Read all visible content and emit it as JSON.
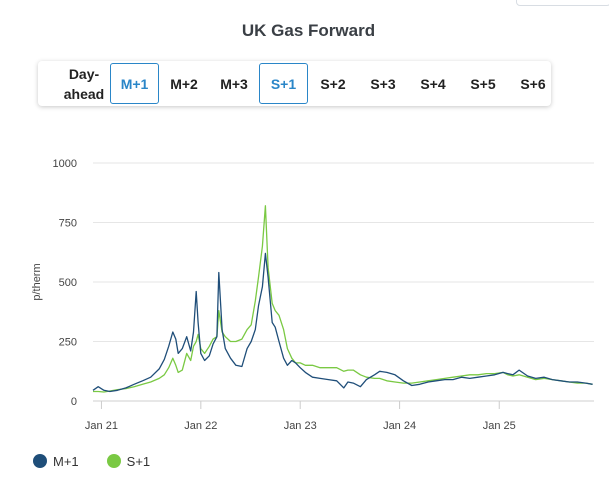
{
  "title": "UK Gas Forward",
  "selector": {
    "buttons": [
      {
        "label": "Day-ahead",
        "line1": "Day-",
        "line2": "ahead",
        "active": false
      },
      {
        "label": "M+1",
        "active": true
      },
      {
        "label": "M+2",
        "active": false
      },
      {
        "label": "M+3",
        "active": false
      },
      {
        "label": "S+1",
        "active": true
      },
      {
        "label": "S+2",
        "active": false
      },
      {
        "label": "S+3",
        "active": false
      },
      {
        "label": "S+4",
        "active": false
      },
      {
        "label": "S+5",
        "active": false
      },
      {
        "label": "S+6",
        "active": false
      }
    ]
  },
  "colors": {
    "m1": "#1f4e79",
    "s1": "#7ac943",
    "active": "#2a86c8",
    "grid": "#e6e6e6"
  },
  "chart_data": {
    "type": "line",
    "title": "UK Gas Forward",
    "ylabel": "p/therm",
    "xlabel": "",
    "ylim": [
      0,
      1000
    ],
    "yticks": [
      0,
      250,
      500,
      750,
      1000
    ],
    "xticks": [
      {
        "label": "Jan 21",
        "x": "2021-01-01"
      },
      {
        "label": "Jan 22",
        "x": "2022-01-01"
      },
      {
        "label": "Jan 23",
        "x": "2023-01-01"
      },
      {
        "label": "Jan 24",
        "x": "2024-01-01"
      },
      {
        "label": "Jan 25",
        "x": "2025-01-01"
      }
    ],
    "xlim": [
      "2020-12-01",
      "2025-12-15"
    ],
    "grid": true,
    "legend": "bottom-left",
    "series": [
      {
        "name": "M+1",
        "x": [
          "2020-12-01",
          "2020-12-20",
          "2021-01-10",
          "2021-02-01",
          "2021-03-01",
          "2021-04-01",
          "2021-05-01",
          "2021-06-01",
          "2021-07-01",
          "2021-08-01",
          "2021-08-20",
          "2021-09-05",
          "2021-09-20",
          "2021-10-01",
          "2021-10-10",
          "2021-10-25",
          "2021-11-10",
          "2021-11-25",
          "2021-12-05",
          "2021-12-15",
          "2021-12-22",
          "2022-01-01",
          "2022-01-15",
          "2022-02-01",
          "2022-02-15",
          "2022-03-01",
          "2022-03-08",
          "2022-03-20",
          "2022-04-01",
          "2022-04-20",
          "2022-05-10",
          "2022-06-01",
          "2022-06-20",
          "2022-07-05",
          "2022-07-20",
          "2022-08-01",
          "2022-08-15",
          "2022-08-26",
          "2022-09-05",
          "2022-09-20",
          "2022-10-01",
          "2022-10-15",
          "2022-11-01",
          "2022-11-15",
          "2022-12-01",
          "2022-12-15",
          "2023-01-01",
          "2023-01-20",
          "2023-02-15",
          "2023-03-15",
          "2023-04-15",
          "2023-05-15",
          "2023-06-10",
          "2023-06-25",
          "2023-07-15",
          "2023-08-10",
          "2023-09-01",
          "2023-10-01",
          "2023-10-20",
          "2023-11-15",
          "2023-12-15",
          "2024-01-15",
          "2024-02-15",
          "2024-03-15",
          "2024-04-15",
          "2024-05-15",
          "2024-06-15",
          "2024-07-15",
          "2024-08-15",
          "2024-09-15",
          "2024-10-15",
          "2024-11-15",
          "2024-12-15",
          "2025-01-15",
          "2025-02-01",
          "2025-02-20",
          "2025-03-15",
          "2025-04-15",
          "2025-05-15",
          "2025-06-15",
          "2025-07-15",
          "2025-08-15",
          "2025-09-15",
          "2025-10-15",
          "2025-11-15",
          "2025-12-10"
        ],
        "values": [
          45,
          60,
          45,
          40,
          45,
          55,
          70,
          85,
          100,
          135,
          175,
          230,
          290,
          260,
          200,
          220,
          270,
          210,
          290,
          460,
          330,
          200,
          170,
          190,
          240,
          270,
          540,
          300,
          220,
          180,
          150,
          145,
          220,
          250,
          300,
          400,
          480,
          620,
          520,
          330,
          310,
          250,
          180,
          150,
          170,
          160,
          140,
          120,
          100,
          95,
          90,
          85,
          55,
          80,
          75,
          60,
          90,
          110,
          125,
          120,
          110,
          85,
          65,
          70,
          80,
          85,
          90,
          90,
          100,
          95,
          100,
          105,
          110,
          120,
          115,
          110,
          130,
          105,
          95,
          100,
          90,
          85,
          80,
          80,
          75,
          70
        ]
      },
      {
        "name": "S+1",
        "x": [
          "2020-12-01",
          "2020-12-20",
          "2021-01-10",
          "2021-02-01",
          "2021-03-01",
          "2021-04-01",
          "2021-05-01",
          "2021-06-01",
          "2021-07-01",
          "2021-08-01",
          "2021-08-20",
          "2021-09-05",
          "2021-09-20",
          "2021-10-01",
          "2021-10-10",
          "2021-10-25",
          "2021-11-10",
          "2021-11-25",
          "2021-12-05",
          "2021-12-15",
          "2021-12-22",
          "2022-01-01",
          "2022-01-15",
          "2022-02-01",
          "2022-02-15",
          "2022-03-01",
          "2022-03-08",
          "2022-03-20",
          "2022-04-01",
          "2022-04-20",
          "2022-05-10",
          "2022-06-01",
          "2022-06-20",
          "2022-07-05",
          "2022-07-20",
          "2022-08-01",
          "2022-08-15",
          "2022-08-26",
          "2022-09-05",
          "2022-09-20",
          "2022-10-01",
          "2022-10-15",
          "2022-11-01",
          "2022-11-15",
          "2022-12-01",
          "2022-12-15",
          "2023-01-01",
          "2023-01-20",
          "2023-02-15",
          "2023-03-15",
          "2023-04-15",
          "2023-05-15",
          "2023-06-10",
          "2023-06-25",
          "2023-07-15",
          "2023-08-10",
          "2023-09-01",
          "2023-10-01",
          "2023-10-20",
          "2023-11-15",
          "2023-12-15",
          "2024-01-15",
          "2024-02-15",
          "2024-03-15",
          "2024-04-15",
          "2024-05-15",
          "2024-06-15",
          "2024-07-15",
          "2024-08-15",
          "2024-09-15",
          "2024-10-15",
          "2024-11-15",
          "2024-12-15",
          "2025-01-15",
          "2025-02-01",
          "2025-02-20",
          "2025-03-15",
          "2025-04-15",
          "2025-05-15",
          "2025-06-15",
          "2025-07-15",
          "2025-08-15",
          "2025-09-15",
          "2025-10-15",
          "2025-11-15",
          "2025-12-10"
        ],
        "values": [
          40,
          40,
          38,
          42,
          48,
          52,
          60,
          70,
          80,
          95,
          110,
          140,
          180,
          150,
          120,
          130,
          200,
          170,
          230,
          250,
          280,
          220,
          200,
          230,
          260,
          270,
          380,
          290,
          270,
          250,
          250,
          260,
          300,
          320,
          420,
          520,
          650,
          820,
          560,
          410,
          380,
          360,
          300,
          220,
          180,
          160,
          160,
          150,
          150,
          140,
          140,
          140,
          125,
          130,
          130,
          110,
          100,
          95,
          95,
          85,
          80,
          75,
          75,
          80,
          85,
          90,
          95,
          100,
          105,
          110,
          110,
          115,
          115,
          120,
          110,
          105,
          110,
          100,
          90,
          95,
          90,
          85,
          80,
          75,
          75,
          70
        ]
      }
    ]
  }
}
